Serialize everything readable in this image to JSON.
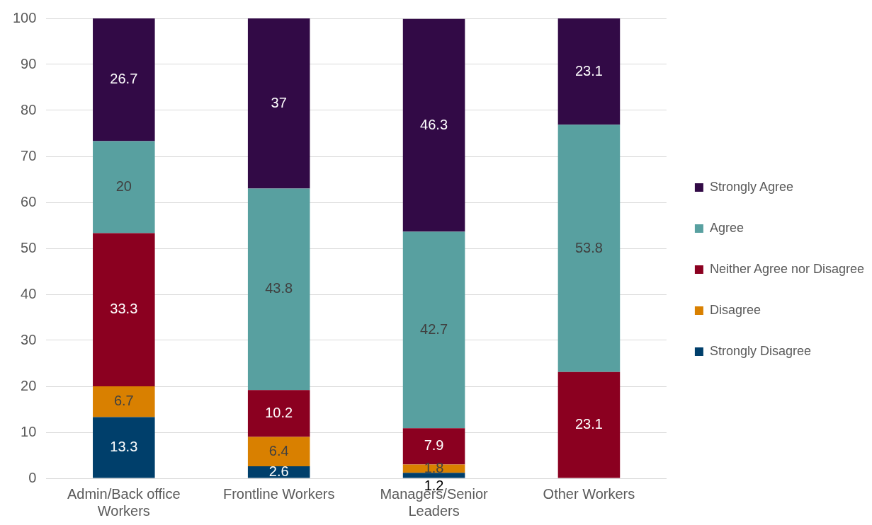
{
  "chart_data": {
    "type": "bar",
    "stacked": true,
    "categories": [
      "Admin/Back office Workers",
      "Frontline Workers",
      "Managers/Senior Leaders",
      "Other Workers"
    ],
    "series": [
      {
        "name": "Strongly Disagree",
        "color": "#003f6b",
        "values": [
          13.3,
          2.6,
          1.2,
          null
        ]
      },
      {
        "name": "Disagree",
        "color": "#d98000",
        "values": [
          6.7,
          6.4,
          1.8,
          null
        ]
      },
      {
        "name": "Neither Agree nor Disagree",
        "color": "#8b0020",
        "values": [
          33.3,
          10.2,
          7.9,
          23.1
        ]
      },
      {
        "name": "Agree",
        "color": "#58a0a0",
        "values": [
          20,
          43.8,
          42.7,
          53.8
        ]
      },
      {
        "name": "Strongly Agree",
        "color": "#320a46",
        "values": [
          26.7,
          37,
          46.3,
          23.1
        ]
      }
    ],
    "ylim": [
      0,
      100
    ],
    "yticks": [
      0,
      10,
      20,
      30,
      40,
      50,
      60,
      70,
      80,
      90,
      100
    ],
    "grid": "y",
    "legend": "right",
    "data_labels": true
  }
}
